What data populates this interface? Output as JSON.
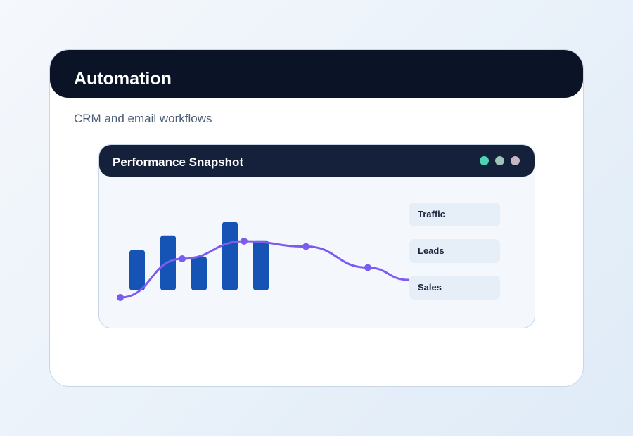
{
  "card": {
    "title": "Automation",
    "subtitle": "CRM and email workflows"
  },
  "panel": {
    "title": "Performance Snapshot",
    "window_dots": [
      {
        "name": "green-dot",
        "color": "#4fd1b3"
      },
      {
        "name": "sage-dot",
        "color": "#9fc3b8"
      },
      {
        "name": "mauve-dot",
        "color": "#c7b6c3"
      }
    ],
    "legend": [
      "Traffic",
      "Leads",
      "Sales"
    ]
  },
  "colors": {
    "bar": "#1554b5",
    "line": "#7c5cf0",
    "header": "#0b1426",
    "panel_header": "#15213a"
  },
  "chart_data": {
    "type": "bar",
    "bars": [
      50,
      68,
      42,
      85,
      62
    ],
    "line": {
      "x": [
        0,
        1,
        2,
        3,
        4,
        5
      ],
      "values": [
        30,
        52,
        62,
        59,
        47,
        40
      ]
    }
  }
}
